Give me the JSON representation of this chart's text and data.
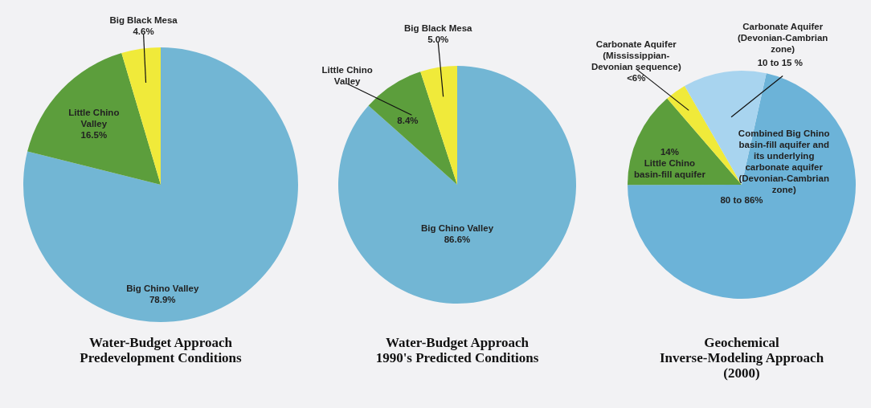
{
  "chart_data": [
    {
      "type": "pie",
      "title": "Water-Budget Approach Predevelopment Conditions",
      "categories": [
        "Big Chino Valley",
        "Little Chino Valley",
        "Big Black Mesa"
      ],
      "values": [
        78.9,
        16.5,
        4.6
      ],
      "value_labels": [
        "78.9%",
        "16.5%",
        "4.6%"
      ],
      "colors": [
        "#72b6d4",
        "#5c9e3c",
        "#f0ea3a"
      ]
    },
    {
      "type": "pie",
      "title": "Water-Budget Approach 1990's Predicted Conditions",
      "categories": [
        "Big Chino Valley",
        "Little Chino Valley",
        "Big Black Mesa"
      ],
      "values": [
        86.6,
        8.4,
        5.0
      ],
      "value_labels": [
        "86.6%",
        "8.4%",
        "5.0%"
      ],
      "colors": [
        "#72b6d4",
        "#5c9e3c",
        "#f0ea3a"
      ]
    },
    {
      "type": "pie",
      "title": "Geochemical Inverse-Modeling Approach (2000)",
      "categories": [
        "Combined Big Chino basin-fill aquifer and its underlying carbonate aquifer (Devonian-Cambrian zone)",
        "Little Chino basin-fill aquifer",
        "Carbonate Aquifer (Mississippian-Devonian sequence)",
        "Carbonate Aquifer (Devonian-Cambrian zone)"
      ],
      "values": [
        71.5,
        13.7,
        3.0,
        11.8
      ],
      "value_labels": [
        null,
        "14%",
        "<6%",
        null
      ],
      "annotations": [
        "80 to 86%",
        "10 to 15 %"
      ],
      "colors": [
        "#6cb3d8",
        "#5c9e3c",
        "#f0ea3a",
        "#a8d4ef"
      ]
    }
  ]
}
